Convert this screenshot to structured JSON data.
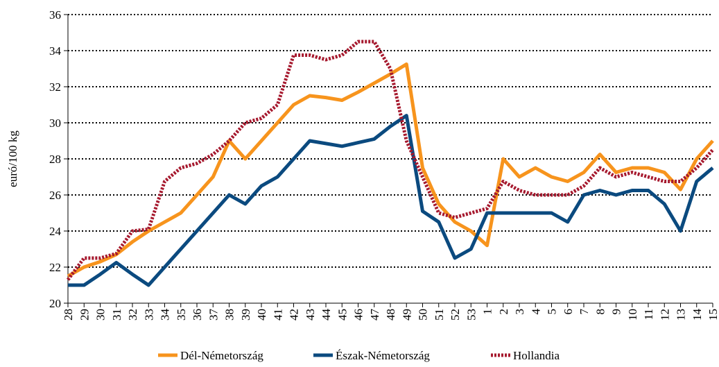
{
  "chart_data": {
    "type": "line",
    "y_label": "euró/100 kg",
    "categories": [
      "28",
      "29",
      "30",
      "31",
      "32",
      "33",
      "34",
      "35",
      "36",
      "37",
      "38",
      "39",
      "40",
      "41",
      "42",
      "43",
      "44",
      "45",
      "46",
      "47",
      "48",
      "49",
      "50",
      "51",
      "52",
      "53",
      "1",
      "2",
      "3",
      "4",
      "5",
      "6",
      "7",
      "8",
      "9",
      "10",
      "11",
      "12",
      "13",
      "14",
      "15"
    ],
    "series": [
      {
        "name": "Dél-Németország",
        "color": "#f7941d",
        "dash": false,
        "values": [
          21.5,
          22.0,
          22.3,
          22.7,
          23.4,
          24.0,
          24.5,
          25.0,
          26.0,
          27.0,
          29.0,
          28.0,
          29.0,
          30.0,
          31.0,
          31.5,
          31.4,
          31.25,
          31.7,
          32.2,
          32.7,
          33.25,
          27.5,
          25.5,
          24.5,
          24.0,
          23.2,
          28.0,
          27.0,
          27.5,
          27.0,
          26.75,
          27.25,
          28.25,
          27.25,
          27.5,
          27.5,
          27.25,
          26.3,
          28.0,
          29.0
        ]
      },
      {
        "name": "Észak-Németország",
        "color": "#0b4a7f",
        "dash": false,
        "values": [
          21.0,
          21.0,
          21.6,
          22.25,
          21.6,
          21.0,
          22.0,
          23.0,
          24.0,
          25.0,
          26.0,
          25.5,
          26.5,
          27.0,
          28.0,
          29.0,
          28.85,
          28.7,
          28.9,
          29.1,
          29.8,
          30.4,
          25.1,
          24.5,
          22.5,
          23.0,
          25.0,
          25.0,
          25.0,
          25.0,
          25.0,
          24.5,
          26.0,
          26.25,
          26.0,
          26.25,
          26.25,
          25.5,
          24.0,
          26.75,
          27.5
        ]
      },
      {
        "name": "Hollandia",
        "color": "#a6192e",
        "dash": true,
        "values": [
          21.3,
          22.5,
          22.5,
          22.75,
          24.0,
          24.1,
          26.75,
          27.5,
          27.75,
          28.25,
          29.0,
          30.0,
          30.25,
          31.0,
          33.75,
          33.75,
          33.5,
          33.75,
          34.5,
          34.5,
          33.0,
          29.0,
          27.0,
          25.0,
          24.75,
          25.0,
          25.25,
          26.75,
          26.25,
          26.0,
          26.0,
          26.0,
          26.5,
          27.5,
          27.0,
          27.25,
          27.0,
          26.75,
          26.75,
          27.5,
          28.5
        ]
      }
    ],
    "ylim": [
      20,
      36
    ],
    "yticks": [
      20,
      22,
      24,
      26,
      28,
      30,
      32,
      34,
      36
    ],
    "grid": true,
    "legend": "bottom"
  }
}
